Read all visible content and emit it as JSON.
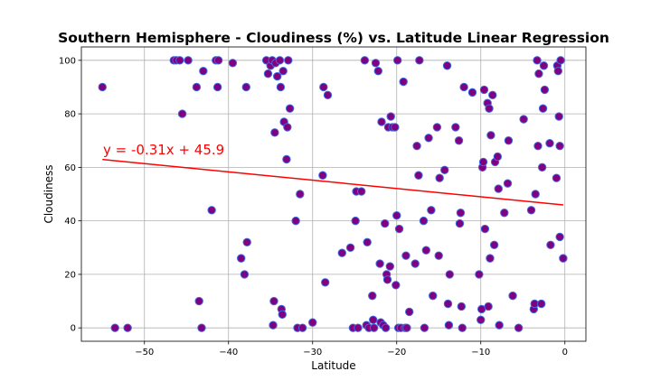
{
  "chart_data": {
    "type": "scatter",
    "title": "Southern Hemisphere - Cloudiness (%) vs. Latitude Linear Regression",
    "xlabel": "Latitude",
    "ylabel": "Cloudiness",
    "xlim": [
      -57.5,
      2.5
    ],
    "ylim": [
      -5,
      105
    ],
    "x_ticks": [
      -50,
      -40,
      -30,
      -20,
      -10,
      0
    ],
    "y_ticks": [
      0,
      20,
      40,
      60,
      80,
      100
    ],
    "x_tick_labels": [
      "−50",
      "−40",
      "−30",
      "−20",
      "−10",
      "0"
    ],
    "y_tick_labels": [
      "0",
      "20",
      "40",
      "60",
      "80",
      "100"
    ],
    "grid": true,
    "marker_fill": "#800080",
    "marker_edge": "#4169e1",
    "regression": {
      "slope": -0.31,
      "intercept": 45.9,
      "x_range": [
        -55,
        -0.2
      ],
      "color": "#ff0000",
      "equation": "y = -0.31x + 45.9"
    },
    "points": [
      [
        -55,
        90
      ],
      [
        -53.5,
        0
      ],
      [
        -52,
        0
      ],
      [
        -46.5,
        100
      ],
      [
        -46.2,
        100
      ],
      [
        -45.8,
        100
      ],
      [
        -45.5,
        80
      ],
      [
        -44.8,
        100
      ],
      [
        -43.8,
        90
      ],
      [
        -43.5,
        10
      ],
      [
        -43.2,
        0
      ],
      [
        -43,
        96
      ],
      [
        -42,
        44
      ],
      [
        -41.5,
        100
      ],
      [
        -41.3,
        90
      ],
      [
        -41.2,
        100
      ],
      [
        -39.5,
        99
      ],
      [
        -38.5,
        26
      ],
      [
        -38.1,
        20
      ],
      [
        -37.9,
        90
      ],
      [
        -37.8,
        32
      ],
      [
        -35.5,
        100
      ],
      [
        -35.3,
        95
      ],
      [
        -35,
        98
      ],
      [
        -34.8,
        100
      ],
      [
        -34.7,
        1
      ],
      [
        -34.6,
        10
      ],
      [
        -34.5,
        73
      ],
      [
        -34.4,
        99
      ],
      [
        -34.2,
        94
      ],
      [
        -33.9,
        100
      ],
      [
        -33.8,
        90
      ],
      [
        -33.7,
        7
      ],
      [
        -33.6,
        5
      ],
      [
        -33.5,
        96
      ],
      [
        -33.4,
        77
      ],
      [
        -33.1,
        63
      ],
      [
        -33,
        75
      ],
      [
        -32.9,
        100
      ],
      [
        -32.7,
        82
      ],
      [
        -32,
        40
      ],
      [
        -31.8,
        0
      ],
      [
        -31.5,
        50
      ],
      [
        -31.2,
        0
      ],
      [
        -30,
        2
      ],
      [
        -28.8,
        57
      ],
      [
        -28.7,
        90
      ],
      [
        -28.5,
        17
      ],
      [
        -28.2,
        87
      ],
      [
        -26.5,
        28
      ],
      [
        -25.5,
        30
      ],
      [
        -25.2,
        0
      ],
      [
        -24.9,
        40
      ],
      [
        -24.8,
        51
      ],
      [
        -24.6,
        0
      ],
      [
        -24.2,
        51
      ],
      [
        -23.8,
        100
      ],
      [
        -23.6,
        1
      ],
      [
        -23.5,
        32
      ],
      [
        -23.3,
        0
      ],
      [
        -22.9,
        12
      ],
      [
        -22.8,
        3
      ],
      [
        -22.7,
        0
      ],
      [
        -22.5,
        99
      ],
      [
        -22.2,
        96
      ],
      [
        -22,
        24
      ],
      [
        -21.9,
        2
      ],
      [
        -21.8,
        77
      ],
      [
        -21.6,
        1
      ],
      [
        -21.4,
        39
      ],
      [
        -21.3,
        0
      ],
      [
        -21.2,
        20
      ],
      [
        -21.1,
        18
      ],
      [
        -21,
        75
      ],
      [
        -20.8,
        23
      ],
      [
        -20.7,
        79
      ],
      [
        -20.5,
        75
      ],
      [
        -20.2,
        75
      ],
      [
        -20.1,
        16
      ],
      [
        -20,
        42
      ],
      [
        -19.9,
        100
      ],
      [
        -19.8,
        0
      ],
      [
        -19.7,
        37
      ],
      [
        -19.5,
        0
      ],
      [
        -19.2,
        92
      ],
      [
        -19,
        0
      ],
      [
        -18.9,
        27
      ],
      [
        -18.8,
        0
      ],
      [
        -18.5,
        6
      ],
      [
        -17.8,
        24
      ],
      [
        -17.6,
        68
      ],
      [
        -17.4,
        57
      ],
      [
        -17.3,
        100
      ],
      [
        -16.8,
        40
      ],
      [
        -16.7,
        0
      ],
      [
        -16.5,
        29
      ],
      [
        -16.2,
        71
      ],
      [
        -15.9,
        44
      ],
      [
        -15.7,
        12
      ],
      [
        -15.2,
        75
      ],
      [
        -15,
        27
      ],
      [
        -14.9,
        56
      ],
      [
        -14.3,
        59
      ],
      [
        -14,
        98
      ],
      [
        -13.9,
        9
      ],
      [
        -13.8,
        1
      ],
      [
        -13.7,
        20
      ],
      [
        -13,
        75
      ],
      [
        -12.6,
        70
      ],
      [
        -12.5,
        39
      ],
      [
        -12.4,
        43
      ],
      [
        -12.3,
        8
      ],
      [
        -12.2,
        0
      ],
      [
        -12,
        90
      ],
      [
        -11,
        88
      ],
      [
        -10.2,
        20
      ],
      [
        -10,
        3
      ],
      [
        -9.9,
        7
      ],
      [
        -9.8,
        60
      ],
      [
        -9.7,
        62
      ],
      [
        -9.6,
        89
      ],
      [
        -9.5,
        37
      ],
      [
        -9.2,
        84
      ],
      [
        -9.1,
        8
      ],
      [
        -9,
        82
      ],
      [
        -8.9,
        26
      ],
      [
        -8.8,
        72
      ],
      [
        -8.6,
        87
      ],
      [
        -8.4,
        31
      ],
      [
        -8.3,
        62
      ],
      [
        -8,
        64
      ],
      [
        -7.9,
        52
      ],
      [
        -7.8,
        1
      ],
      [
        -7.2,
        43
      ],
      [
        -6.8,
        54
      ],
      [
        -6.7,
        70
      ],
      [
        -6.2,
        12
      ],
      [
        -5.5,
        0
      ],
      [
        -4.9,
        78
      ],
      [
        -4,
        44
      ],
      [
        -3.7,
        7
      ],
      [
        -3.6,
        9
      ],
      [
        -3.5,
        50
      ],
      [
        -3.3,
        100
      ],
      [
        -3.2,
        68
      ],
      [
        -3.1,
        95
      ],
      [
        -2.8,
        9
      ],
      [
        -2.7,
        60
      ],
      [
        -2.6,
        82
      ],
      [
        -2.5,
        98
      ],
      [
        -2.4,
        89
      ],
      [
        -1.8,
        69
      ],
      [
        -1.7,
        31
      ],
      [
        -1,
        56
      ],
      [
        -0.9,
        98
      ],
      [
        -0.8,
        96
      ],
      [
        -0.7,
        79
      ],
      [
        -0.6,
        68
      ],
      [
        -0.6,
        34
      ],
      [
        -0.5,
        100
      ],
      [
        -0.2,
        26
      ]
    ]
  }
}
